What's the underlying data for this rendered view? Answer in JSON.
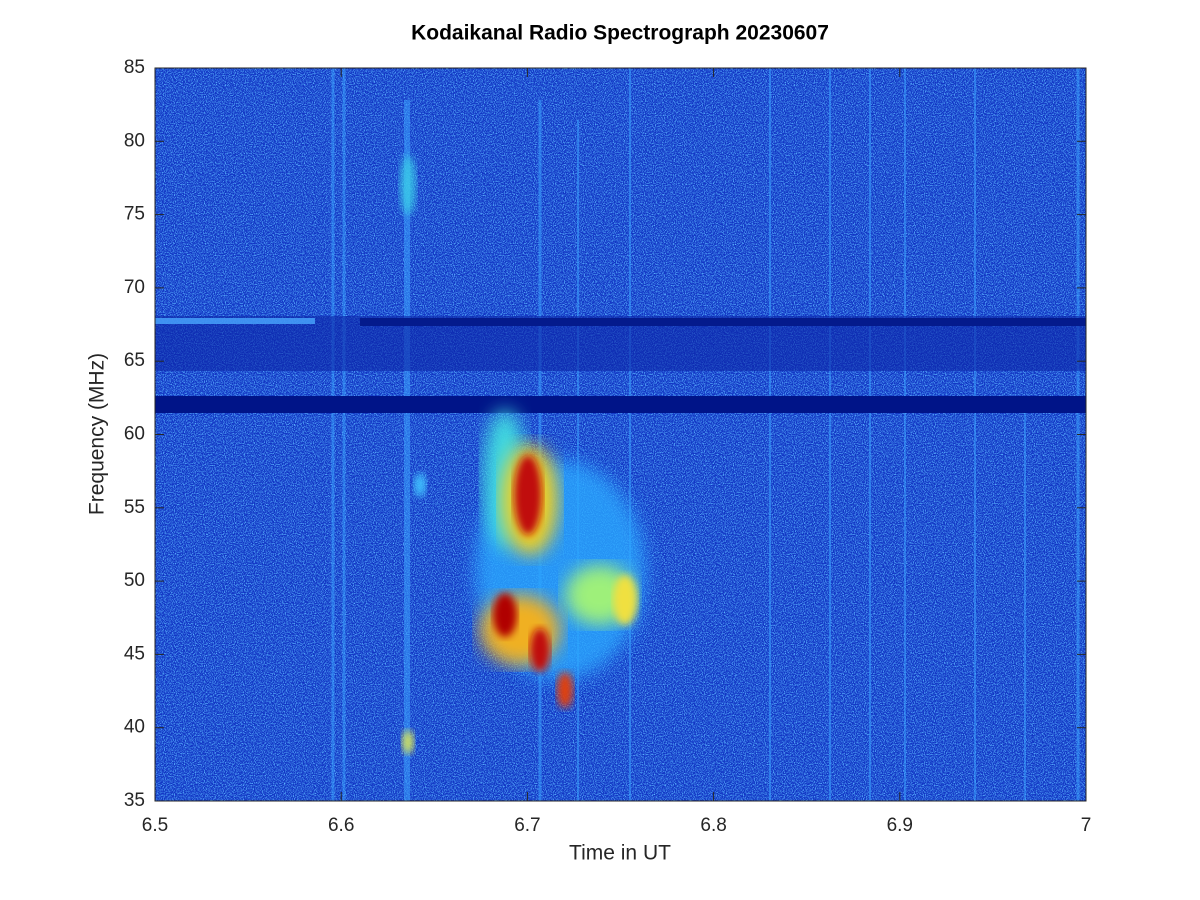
{
  "chart_data": {
    "type": "spectrogram",
    "title": "Kodaikanal Radio Spectrograph  20230607",
    "x_label": "Time in UT",
    "y_label": "Frequency (MHz)",
    "xlim": [
      6.5,
      7
    ],
    "xticks": [
      6.5,
      6.6,
      6.7,
      6.8,
      6.9,
      7
    ],
    "ylim": [
      35,
      85
    ],
    "yticks": [
      35,
      40,
      45,
      50,
      55,
      60,
      65,
      70,
      75,
      80,
      85
    ],
    "colormap": "jet"
  }
}
